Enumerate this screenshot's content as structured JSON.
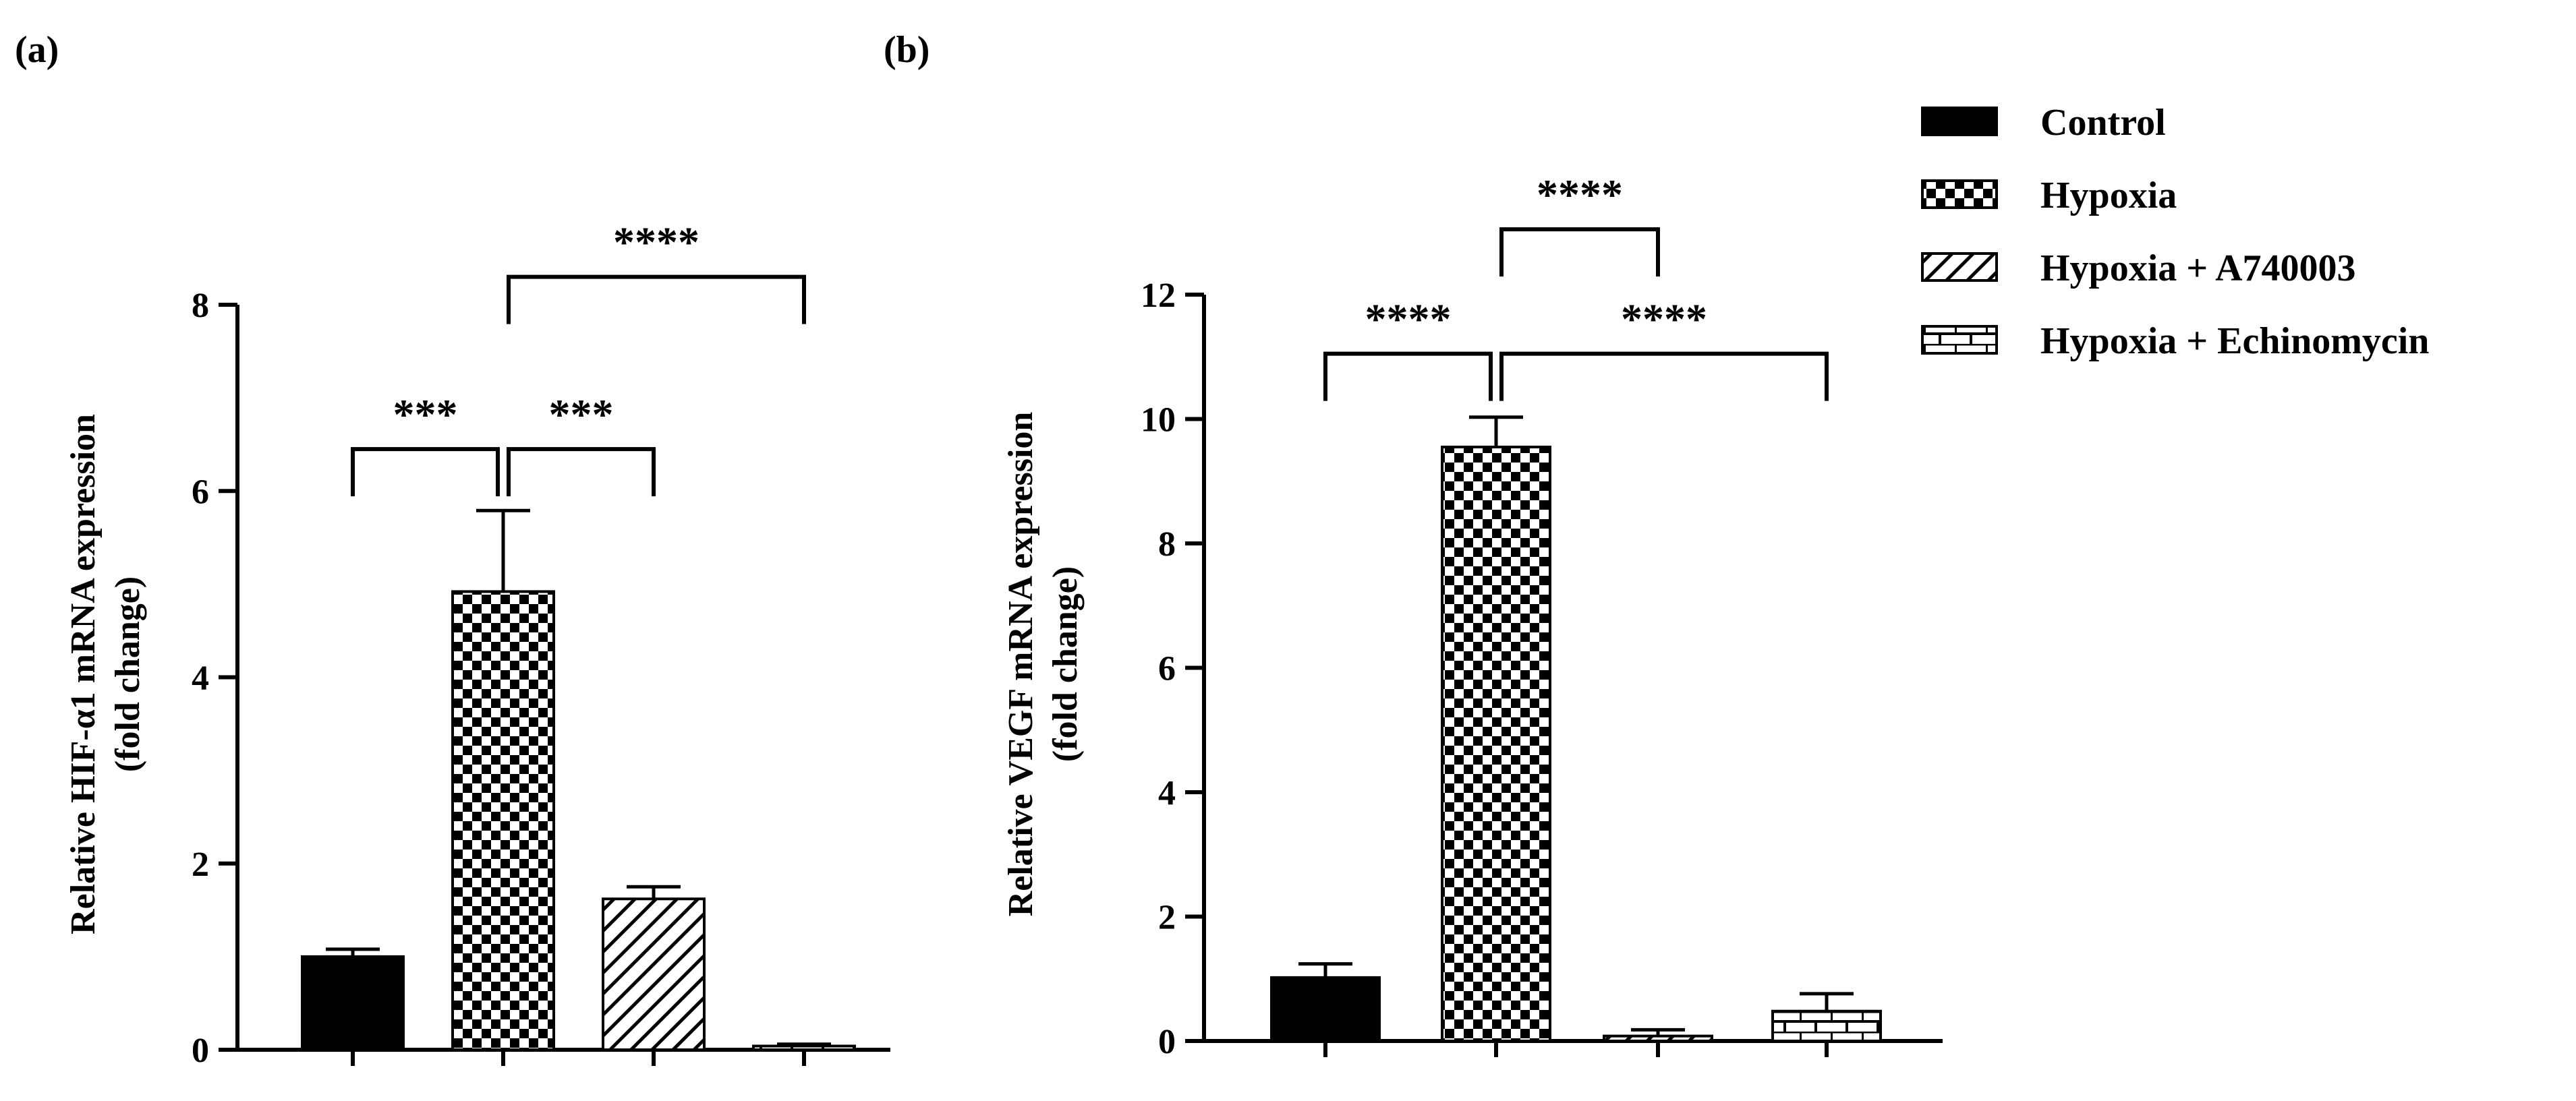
{
  "colors": {
    "ink": "#000000",
    "background": "#ffffff"
  },
  "legend": {
    "position": "right",
    "items": [
      {
        "label": "Control",
        "pattern": "solid"
      },
      {
        "label": "Hypoxia",
        "pattern": "checker"
      },
      {
        "label": "Hypoxia + A740003",
        "pattern": "hatch"
      },
      {
        "label": "Hypoxia + Echinomycin",
        "pattern": "brick"
      }
    ]
  },
  "chart_data": [
    {
      "type": "bar",
      "panel_label": "(a)",
      "ylabel": "Relative HIF-α1 mRNA expression",
      "ylabel2": "(fold change)",
      "ylim": [
        0,
        8
      ],
      "yticks": [
        0,
        2,
        4,
        6,
        8
      ],
      "ytick_labels": [
        "0",
        "2",
        "4",
        "6",
        "8"
      ],
      "grid": false,
      "categories": [
        "Control",
        "Hypoxia",
        "Hypoxia + A740003",
        "Hypoxia + Echinomycin"
      ],
      "patterns": [
        "solid",
        "checker",
        "hatch",
        "brick"
      ],
      "values": [
        1.0,
        4.92,
        1.62,
        0.04
      ],
      "errors": [
        0.08,
        0.87,
        0.13,
        0.02
      ],
      "significance": [
        {
          "from": 0,
          "to": 1,
          "label": "***",
          "bracket_y": 6.45
        },
        {
          "from": 1,
          "to": 2,
          "label": "***",
          "bracket_y": 6.45
        },
        {
          "from": 1,
          "to": 3,
          "label": "****",
          "bracket_y": 8.3
        }
      ]
    },
    {
      "type": "bar",
      "panel_label": "(b)",
      "ylabel": "Relative VEGF mRNA expression",
      "ylabel2": "(fold change)",
      "ylim": [
        0,
        12
      ],
      "yticks": [
        0,
        2,
        4,
        6,
        8,
        10,
        12
      ],
      "ytick_labels": [
        "0",
        "2",
        "4",
        "6",
        "8",
        "10",
        "12"
      ],
      "grid": false,
      "categories": [
        "Control",
        "Hypoxia",
        "Hypoxia + A740003",
        "Hypoxia + Echinomycin"
      ],
      "patterns": [
        "solid",
        "checker",
        "hatch",
        "brick"
      ],
      "values": [
        1.02,
        9.55,
        0.08,
        0.48
      ],
      "errors": [
        0.22,
        0.48,
        0.1,
        0.28
      ],
      "significance": [
        {
          "from": 0,
          "to": 1,
          "label": "****",
          "bracket_y": 11.05
        },
        {
          "from": 1,
          "to": 3,
          "label": "****",
          "bracket_y": 11.05
        },
        {
          "from": 1,
          "to": 2,
          "label": "****",
          "bracket_y": 13.05
        }
      ]
    }
  ]
}
